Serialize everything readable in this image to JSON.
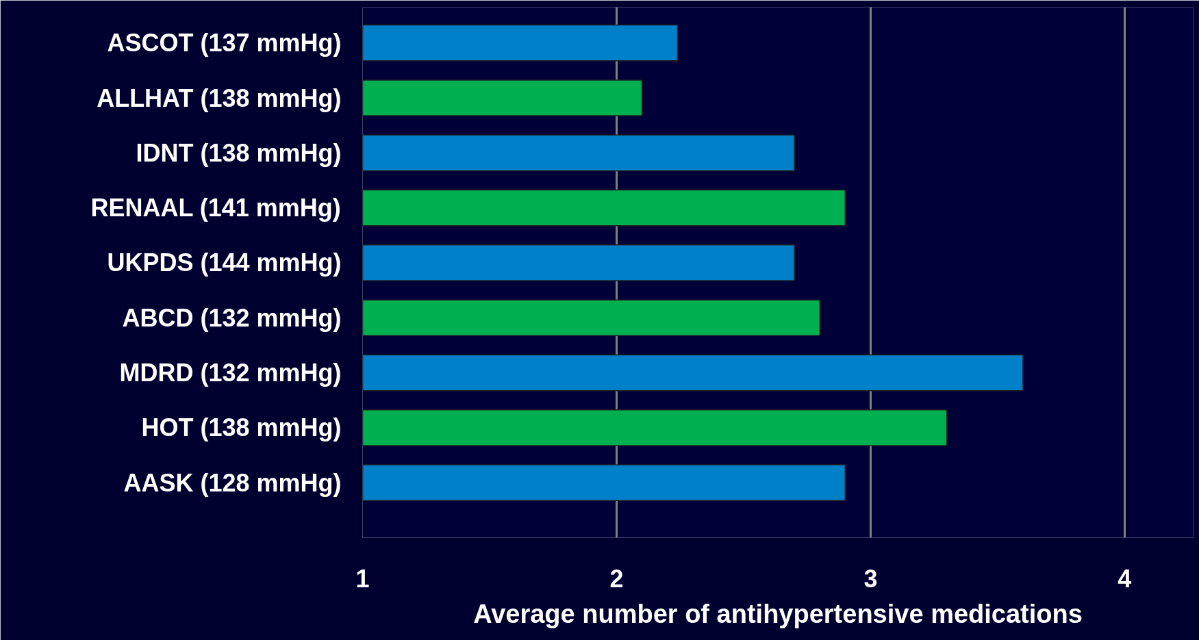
{
  "chart_data": {
    "type": "bar",
    "orientation": "horizontal",
    "categories": [
      "ASCOT (137 mmHg)",
      "ALLHAT (138 mmHg)",
      "IDNT (138 mmHg)",
      "RENAAL (141 mmHg)",
      "UKPDS (144 mmHg)",
      "ABCD (132 mmHg)",
      "MDRD (132 mmHg)",
      "HOT (138 mmHg)",
      "AASK (128 mmHg)"
    ],
    "values": [
      2.24,
      2.1,
      2.7,
      2.9,
      2.7,
      2.8,
      3.6,
      3.3,
      2.9
    ],
    "colors": [
      "#0080c8",
      "#00b050",
      "#0080c8",
      "#00b050",
      "#0080c8",
      "#00b050",
      "#0080c8",
      "#00b050",
      "#0080c8"
    ],
    "xlim": [
      1,
      4.27
    ],
    "xticks": [
      1,
      2,
      3,
      4
    ],
    "xlabel": "Average number of antihypertensive medications",
    "grid": "x"
  }
}
